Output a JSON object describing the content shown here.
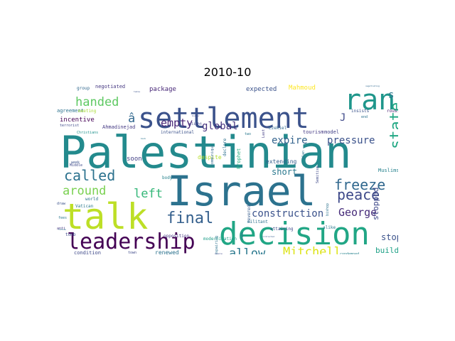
{
  "title": "2010-10",
  "chart_data": {
    "type": "wordcloud",
    "title": "2010-10",
    "words": [
      {
        "text": "Palestinian",
        "weight": 1.0,
        "color": "#238a8d"
      },
      {
        "text": "Israel",
        "weight": 0.82,
        "color": "#2c728e"
      },
      {
        "text": "talk",
        "weight": 0.72,
        "color": "#bddf26"
      },
      {
        "text": "decision",
        "weight": 0.58,
        "color": "#21a685"
      },
      {
        "text": "settlement",
        "weight": 0.56,
        "color": "#3b528b"
      },
      {
        "text": "ran",
        "weight": 0.52,
        "color": "#1f968b"
      },
      {
        "text": "leadership",
        "weight": 0.42,
        "color": "#440154"
      },
      {
        "text": "final",
        "weight": 0.3,
        "color": "#35608d"
      },
      {
        "text": "state",
        "weight": 0.3,
        "color": "#22a884"
      },
      {
        "text": "called",
        "weight": 0.28,
        "color": "#2c728e"
      },
      {
        "text": "peace",
        "weight": 0.26,
        "color": "#3e4989"
      },
      {
        "text": "freeze",
        "weight": 0.26,
        "color": "#31688e"
      },
      {
        "text": "allow",
        "weight": 0.22,
        "color": "#2a788e"
      },
      {
        "text": "Mitchell",
        "weight": 0.22,
        "color": "#dde318"
      },
      {
        "text": "around",
        "weight": 0.22,
        "color": "#7ad151"
      },
      {
        "text": "handed",
        "weight": 0.22,
        "color": "#5ec962"
      },
      {
        "text": "George",
        "weight": 0.2,
        "color": "#472c7a"
      },
      {
        "text": "construction",
        "weight": 0.18,
        "color": "#3b528b"
      },
      {
        "text": "left",
        "weight": 0.22,
        "color": "#35b779"
      },
      {
        "text": "empty",
        "weight": 0.2,
        "color": "#482576"
      },
      {
        "text": "pressure",
        "weight": 0.18,
        "color": "#3b528b"
      },
      {
        "text": "global",
        "weight": 0.18,
        "color": "#46327e"
      },
      {
        "text": "expire",
        "weight": 0.18,
        "color": "#33638d"
      },
      {
        "text": "â",
        "weight": 0.22,
        "color": "#31688e"
      },
      {
        "text": "s",
        "weight": 0.18,
        "color": "#2a788e"
      },
      {
        "text": "J",
        "weight": 0.18,
        "color": "#3e4989"
      },
      {
        "text": "short",
        "weight": 0.15,
        "color": "#2a788e"
      },
      {
        "text": "stop",
        "weight": 0.15,
        "color": "#3b528b"
      },
      {
        "text": "stopped",
        "weight": 0.14,
        "color": "#3e4989"
      },
      {
        "text": "building",
        "weight": 0.14,
        "color": "#1fa187"
      },
      {
        "text": "soon",
        "weight": 0.12,
        "color": "#424086"
      },
      {
        "text": "package",
        "weight": 0.11,
        "color": "#482878"
      },
      {
        "text": "expected",
        "weight": 0.11,
        "color": "#3b528b"
      },
      {
        "text": "incentive",
        "weight": 0.1,
        "color": "#440154"
      },
      {
        "text": "Ahmadinejad",
        "weight": 0.09,
        "color": "#443983"
      },
      {
        "text": "negotiated",
        "weight": 0.08,
        "color": "#453781"
      },
      {
        "text": "agreement",
        "weight": 0.08,
        "color": "#2c728e"
      },
      {
        "text": "Mahmoud",
        "weight": 0.1,
        "color": "#fde725"
      },
      {
        "text": "extending",
        "weight": 0.09,
        "color": "#355f8d"
      },
      {
        "text": "renewed",
        "weight": 0.09,
        "color": "#2c728e"
      },
      {
        "text": "condition",
        "weight": 0.08,
        "color": "#3e4989"
      },
      {
        "text": "despite",
        "weight": 0.09,
        "color": "#b5de2b"
      },
      {
        "text": "Prophet",
        "weight": 0.08,
        "color": "#27ad81"
      },
      {
        "text": "Muslims",
        "weight": 0.07,
        "color": "#26828e"
      },
      {
        "text": "tourism",
        "weight": 0.07,
        "color": "#443983"
      },
      {
        "text": "model",
        "weight": 0.07,
        "color": "#424086"
      },
      {
        "text": "rousing",
        "weight": 0.06,
        "color": "#481d6f"
      },
      {
        "text": "international",
        "weight": 0.06,
        "color": "#3b528b"
      },
      {
        "text": "group",
        "weight": 0.06,
        "color": "#31688e"
      },
      {
        "text": "meeting",
        "weight": 0.06,
        "color": "#a8db34"
      },
      {
        "text": "terrorist",
        "weight": 0.05,
        "color": "#3e4989"
      },
      {
        "text": "Christians",
        "weight": 0.05,
        "color": "#20928c"
      },
      {
        "text": "world",
        "weight": 0.06,
        "color": "#2c728e"
      },
      {
        "text": "Vatican",
        "weight": 0.06,
        "color": "#2a788e"
      },
      {
        "text": "Middle",
        "weight": 0.05,
        "color": "#3e4989"
      },
      {
        "text": "week",
        "weight": 0.05,
        "color": "#3b528b"
      },
      {
        "text": "tomb",
        "weight": 0.06,
        "color": "#3e4989"
      },
      {
        "text": "body",
        "weight": 0.06,
        "color": "#26828e"
      },
      {
        "text": "opposition",
        "weight": 0.06,
        "color": "#453781"
      },
      {
        "text": "modernization",
        "weight": 0.06,
        "color": "#1f9e89"
      },
      {
        "text": "communiqué",
        "weight": 0.05,
        "color": "#31688e"
      },
      {
        "text": "declare",
        "weight": 0.06,
        "color": "#2d708e"
      },
      {
        "text": "revered",
        "weight": 0.06,
        "color": "#365c8d"
      },
      {
        "text": "militant",
        "weight": 0.06,
        "color": "#2c728e"
      },
      {
        "text": "attaining",
        "weight": 0.06,
        "color": "#3e4989"
      },
      {
        "text": "alike",
        "weight": 0.06,
        "color": "#2a788e"
      },
      {
        "text": "condemned",
        "weight": 0.05,
        "color": "#26828e"
      },
      {
        "text": "run",
        "weight": 0.06,
        "color": "#2d708e"
      },
      {
        "text": "Ezekiel",
        "weight": 0.06,
        "color": "#31688e"
      },
      {
        "text": "plight",
        "weight": 0.05,
        "color": "#404688"
      },
      {
        "text": "Last",
        "weight": 0.05,
        "color": "#433e85"
      },
      {
        "text": "plan",
        "weight": 0.05,
        "color": "#2d708e"
      },
      {
        "text": "Semitism",
        "weight": 0.05,
        "color": "#3e4989"
      },
      {
        "text": "bishop",
        "weight": 0.05,
        "color": "#2c728e"
      },
      {
        "text": "insists",
        "weight": 0.06,
        "color": "#3b528b"
      },
      {
        "text": "end",
        "weight": 0.05,
        "color": "#2c728e"
      },
      {
        "text": "two",
        "weight": 0.05,
        "color": "#2a788e"
      },
      {
        "text": "anti",
        "weight": 0.05,
        "color": "#443983"
      },
      {
        "text": "draw",
        "weight": 0.05,
        "color": "#3b528b"
      },
      {
        "text": "town",
        "weight": 0.05,
        "color": "#3e4989"
      },
      {
        "text": "despairing",
        "weight": 0.05,
        "color": "#2c728e"
      },
      {
        "text": "fees",
        "weight": 0.04,
        "color": "#2a788e"
      },
      {
        "text": "people",
        "weight": 0.04,
        "color": "#3e4989"
      },
      {
        "text": "protracted",
        "weight": 0.04,
        "color": "#365c8d"
      },
      {
        "text": "negotiating",
        "weight": 0.04,
        "color": "#31688e"
      },
      {
        "text": "refuse",
        "weight": 0.04,
        "color": "#2a788e"
      },
      {
        "text": "border",
        "weight": 0.04,
        "color": "#3e4989"
      },
      {
        "text": "back",
        "weight": 0.04,
        "color": "#2c728e"
      },
      {
        "text": "table",
        "weight": 0.04,
        "color": "#3b528b"
      }
    ]
  }
}
